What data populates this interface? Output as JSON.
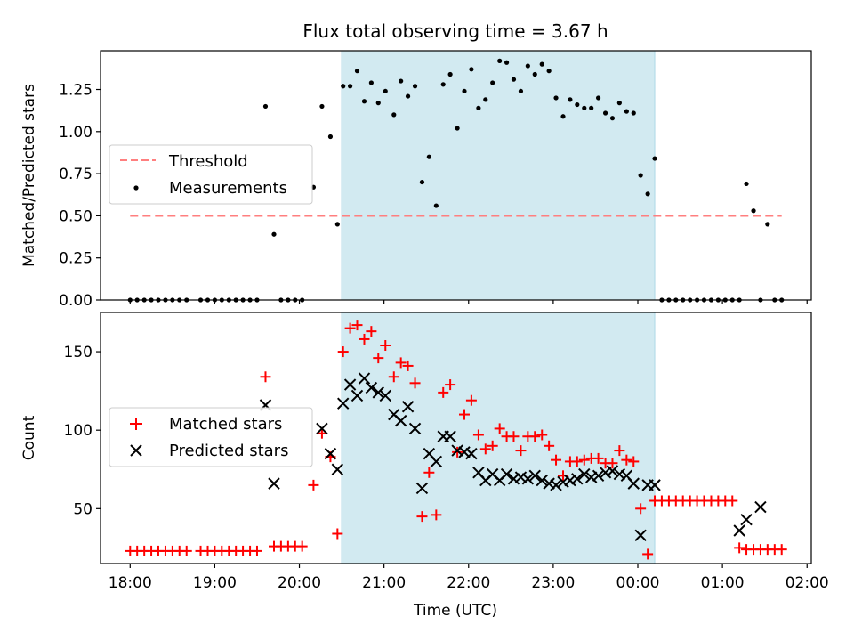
{
  "title": "Flux total observing time = 3.67 h",
  "x_tick_labels": [
    "18:00",
    "19:00",
    "20:00",
    "21:00",
    "22:00",
    "23:00",
    "00:00",
    "01:00",
    "02:00"
  ],
  "xlabel": "Time (UTC)",
  "highlight": {
    "start": 20.5,
    "end": 24.2,
    "color": "#add8e6"
  },
  "chart_data": [
    {
      "type": "scatter",
      "ylabel": "Matched/Predicted stars",
      "xlim": [
        17.65,
        26.05
      ],
      "ylim": [
        0,
        1.48
      ],
      "y_ticks": [
        0,
        0.25,
        0.5,
        0.75,
        1.0,
        1.25
      ],
      "y_tick_labels": [
        "0.00",
        "0.25",
        "0.50",
        "0.75",
        "1.00",
        "1.25"
      ],
      "legend_position": "center-left",
      "threshold": {
        "name": "Threshold",
        "value": 0.5,
        "x_start": 18.0,
        "x_end": 25.7,
        "color": "#ff7f7f"
      },
      "series": [
        {
          "name": "Measurements",
          "color": "#000000",
          "x": [
            18.0,
            18.083,
            18.167,
            18.25,
            18.333,
            18.417,
            18.5,
            18.583,
            18.667,
            18.833,
            18.917,
            19.0,
            19.083,
            19.167,
            19.25,
            19.333,
            19.417,
            19.5,
            19.6,
            19.7,
            19.783,
            19.867,
            19.95,
            20.033,
            20.167,
            20.267,
            20.367,
            20.45,
            20.517,
            20.6,
            20.683,
            20.767,
            20.85,
            20.933,
            21.017,
            21.117,
            21.2,
            21.283,
            21.367,
            21.45,
            21.533,
            21.617,
            21.7,
            21.783,
            21.867,
            21.95,
            22.033,
            22.117,
            22.2,
            22.283,
            22.367,
            22.45,
            22.533,
            22.617,
            22.7,
            22.783,
            22.867,
            22.95,
            23.033,
            23.117,
            23.2,
            23.283,
            23.367,
            23.45,
            23.533,
            23.617,
            23.7,
            23.783,
            23.867,
            23.95,
            24.033,
            24.117,
            24.2,
            24.283,
            24.367,
            24.45,
            24.533,
            24.617,
            24.7,
            24.783,
            24.867,
            24.95,
            25.033,
            25.117,
            25.2,
            25.283,
            25.367,
            25.45,
            25.533,
            25.617,
            25.7
          ],
          "y": [
            0,
            0,
            0,
            0,
            0,
            0,
            0,
            0,
            0,
            0,
            0,
            0,
            0,
            0,
            0,
            0,
            0,
            0,
            1.15,
            0.39,
            0,
            0,
            0,
            0,
            0.67,
            1.15,
            0.97,
            0.45,
            1.27,
            1.27,
            1.36,
            1.18,
            1.29,
            1.17,
            1.24,
            1.1,
            1.3,
            1.21,
            1.27,
            0.7,
            0.85,
            0.56,
            1.28,
            1.34,
            1.02,
            1.24,
            1.37,
            1.14,
            1.19,
            1.29,
            1.42,
            1.41,
            1.31,
            1.24,
            1.39,
            1.34,
            1.4,
            1.36,
            1.2,
            1.09,
            1.19,
            1.16,
            1.14,
            1.14,
            1.2,
            1.11,
            1.08,
            1.17,
            1.12,
            1.11,
            0.74,
            0.63,
            0.84,
            0,
            0,
            0,
            0,
            0,
            0,
            0,
            0,
            0,
            0,
            0,
            0,
            0.69,
            0.53,
            0,
            0.45,
            0,
            0
          ]
        }
      ]
    },
    {
      "type": "scatter",
      "ylabel": "Count",
      "xlim": [
        17.65,
        26.05
      ],
      "ylim": [
        15,
        175
      ],
      "y_ticks": [
        50,
        100,
        150
      ],
      "y_tick_labels": [
        "50",
        "100",
        "150"
      ],
      "legend_position": "center-left",
      "series": [
        {
          "name": "Matched stars",
          "color": "#ff0000",
          "marker": "+",
          "x": [
            18.0,
            18.083,
            18.167,
            18.25,
            18.333,
            18.417,
            18.5,
            18.583,
            18.667,
            18.833,
            18.917,
            19.0,
            19.083,
            19.167,
            19.25,
            19.333,
            19.417,
            19.5,
            19.6,
            19.7,
            19.783,
            19.867,
            19.95,
            20.033,
            20.167,
            20.267,
            20.367,
            20.45,
            20.517,
            20.6,
            20.683,
            20.767,
            20.85,
            20.933,
            21.017,
            21.117,
            21.2,
            21.283,
            21.367,
            21.45,
            21.533,
            21.617,
            21.7,
            21.783,
            21.867,
            21.95,
            22.033,
            22.117,
            22.2,
            22.283,
            22.367,
            22.45,
            22.533,
            22.617,
            22.7,
            22.783,
            22.867,
            22.95,
            23.033,
            23.117,
            23.2,
            23.283,
            23.367,
            23.45,
            23.533,
            23.617,
            23.7,
            23.783,
            23.867,
            23.95,
            24.033,
            24.117,
            24.2,
            24.283,
            24.367,
            24.45,
            24.533,
            24.617,
            24.7,
            24.783,
            24.867,
            24.95,
            25.033,
            25.117,
            25.2,
            25.283,
            25.367,
            25.45,
            25.533,
            25.617,
            25.7
          ],
          "y": [
            23,
            23,
            23,
            23,
            23,
            23,
            23,
            23,
            23,
            23,
            23,
            23,
            23,
            23,
            23,
            23,
            23,
            23,
            134,
            26,
            26,
            26,
            26,
            26,
            65,
            98,
            83,
            34,
            150,
            165,
            167,
            158,
            163,
            146,
            154,
            134,
            143,
            141,
            130,
            45,
            73,
            46,
            124,
            129,
            86,
            110,
            119,
            97,
            88,
            90,
            101,
            96,
            96,
            87,
            96,
            96,
            97,
            90,
            81,
            71,
            80,
            80,
            81,
            82,
            82,
            79,
            79,
            87,
            81,
            80,
            50,
            21,
            55,
            55,
            55,
            55,
            55,
            55,
            55,
            55,
            55,
            55,
            55,
            55,
            25,
            24,
            24,
            24,
            24,
            24,
            24
          ]
        },
        {
          "name": "Predicted stars",
          "color": "#000000",
          "marker": "x",
          "x": [
            19.6,
            19.7,
            20.267,
            20.367,
            20.45,
            20.517,
            20.6,
            20.683,
            20.767,
            20.85,
            20.933,
            21.017,
            21.117,
            21.2,
            21.283,
            21.367,
            21.45,
            21.533,
            21.617,
            21.7,
            21.783,
            21.867,
            21.95,
            22.033,
            22.117,
            22.2,
            22.283,
            22.367,
            22.45,
            22.533,
            22.617,
            22.7,
            22.783,
            22.867,
            22.95,
            23.033,
            23.117,
            23.2,
            23.283,
            23.367,
            23.45,
            23.533,
            23.617,
            23.7,
            23.783,
            23.867,
            23.95,
            24.033,
            24.117,
            24.2,
            25.2,
            25.283,
            25.45
          ],
          "y": [
            116,
            66,
            101,
            85,
            75,
            117,
            129,
            122,
            133,
            127,
            124,
            122,
            110,
            106,
            115,
            101,
            63,
            85,
            80,
            96,
            96,
            87,
            86,
            85,
            73,
            68,
            72,
            68,
            72,
            69,
            70,
            69,
            71,
            68,
            66,
            65,
            67,
            68,
            69,
            72,
            70,
            71,
            73,
            74,
            72,
            71,
            66,
            33,
            65,
            65,
            36,
            43,
            51
          ]
        }
      ]
    }
  ]
}
